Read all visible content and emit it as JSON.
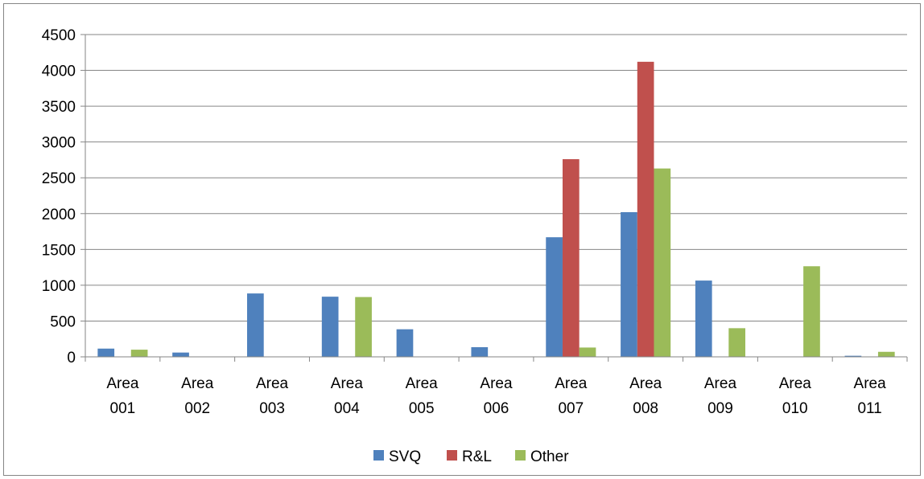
{
  "chart_data": {
    "type": "bar",
    "categories": [
      [
        "Area",
        "001"
      ],
      [
        "Area",
        "002"
      ],
      [
        "Area",
        "003"
      ],
      [
        "Area",
        "004"
      ],
      [
        "Area",
        "005"
      ],
      [
        "Area",
        "006"
      ],
      [
        "Area",
        "007"
      ],
      [
        "Area",
        "008"
      ],
      [
        "Area",
        "009"
      ],
      [
        "Area",
        "010"
      ],
      [
        "Area",
        "011"
      ]
    ],
    "series": [
      {
        "name": "SVQ",
        "color": "#4F81BD",
        "values": [
          115,
          60,
          885,
          840,
          385,
          135,
          1670,
          2020,
          1065,
          0,
          15
        ]
      },
      {
        "name": "R&L",
        "color": "#C0504D",
        "values": [
          0,
          0,
          0,
          0,
          0,
          0,
          2760,
          4120,
          0,
          0,
          0
        ]
      },
      {
        "name": "Other",
        "color": "#9BBB59",
        "values": [
          100,
          0,
          0,
          835,
          0,
          0,
          130,
          2630,
          400,
          1265,
          70
        ]
      }
    ],
    "yticks": [
      "0",
      "500",
      "1000",
      "1500",
      "2000",
      "2500",
      "3000",
      "3500",
      "4000",
      "4500"
    ],
    "ylim": [
      0,
      4500
    ],
    "title": "",
    "xlabel": "",
    "ylabel": "",
    "grid": "horizontal",
    "legend": "bottom"
  }
}
